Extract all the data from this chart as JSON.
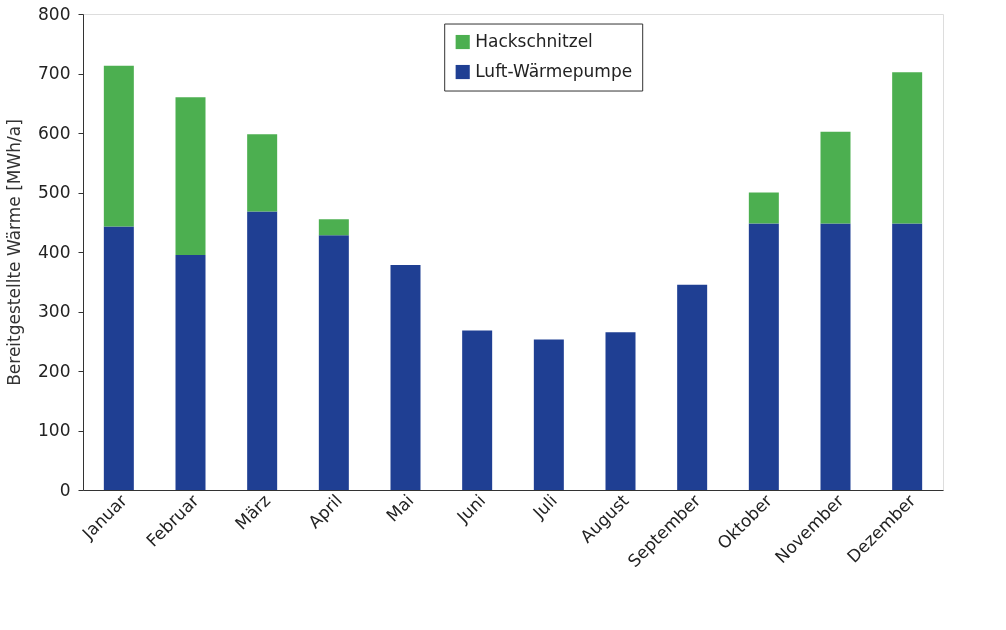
{
  "chart_data": {
    "type": "bar",
    "stacked": true,
    "ylabel": "Bereitgestellte Wärme [MWh/a]",
    "categories": [
      "Januar",
      "Februar",
      "März",
      "April",
      "Mai",
      "Juni",
      "Juli",
      "August",
      "September",
      "Oktober",
      "November",
      "Dezember"
    ],
    "series": [
      {
        "name": "Luft-Wärmepumpe",
        "color": "#1f3f93",
        "values": [
          443,
          395,
          468,
          428,
          378,
          268,
          253,
          265,
          345,
          448,
          448,
          448
        ]
      },
      {
        "name": "Hackschnitzel",
        "color": "#4caf50",
        "values": [
          270,
          265,
          130,
          27,
          0,
          0,
          0,
          0,
          0,
          52,
          154,
          254
        ]
      }
    ],
    "ylim": [
      0,
      800
    ],
    "yticks": [
      0,
      100,
      200,
      300,
      400,
      500,
      600,
      700,
      800
    ],
    "grid": false,
    "legend": "top"
  }
}
